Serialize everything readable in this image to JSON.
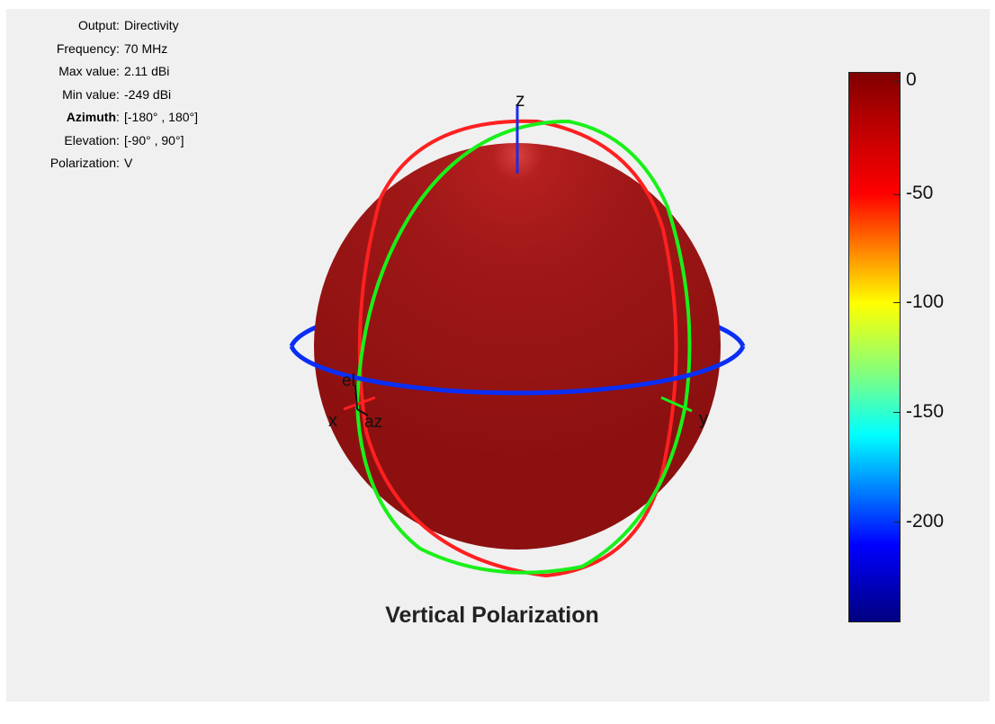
{
  "info": {
    "rows": [
      {
        "label": "Output",
        "value": "Directivity"
      },
      {
        "label": "Frequency",
        "value": "70 MHz"
      },
      {
        "label": "Max value",
        "value": "2.11 dBi"
      },
      {
        "label": "Min value",
        "value": "-249 dBi"
      },
      {
        "label": "Azimuth",
        "value": "[-180° , 180°]"
      },
      {
        "label": "Elevation",
        "value": "[-90° , 90°]"
      },
      {
        "label": "Polarization",
        "value": "V"
      }
    ],
    "separator": ":"
  },
  "plot": {
    "title": "Vertical Polarization",
    "axis_labels": {
      "z": "z",
      "x": "x",
      "y": "y",
      "el": "el",
      "az": "az"
    },
    "sphere_color": "#a01a1a",
    "ring_colors": {
      "azimuth": "#0a2ef5",
      "xz": "#ff2020",
      "yz": "#19f019"
    }
  },
  "colorbar": {
    "ticks": [
      "0",
      "-50",
      "-100",
      "-150",
      "-200"
    ],
    "range": [
      -249,
      2.11
    ],
    "colormap": "jet"
  }
}
